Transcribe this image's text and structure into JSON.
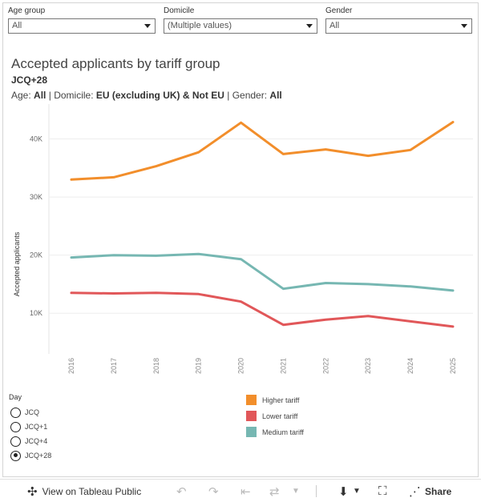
{
  "filters": [
    {
      "label": "Age group",
      "value": "All"
    },
    {
      "label": "Domicile",
      "value": "(Multiple values)"
    },
    {
      "label": "Gender",
      "value": "All"
    }
  ],
  "header": {
    "title": "Accepted applicants by tariff group",
    "subtitle": "JCQ+28",
    "age_label": "Age:",
    "age_value": "All",
    "domicile_label": "Domicile:",
    "domicile_value": "EU (excluding UK) & Not EU",
    "gender_label": "Gender:",
    "gender_value": "All",
    "separator": "|"
  },
  "day_filter": {
    "title": "Day",
    "options": [
      "JCQ",
      "JCQ+1",
      "JCQ+4",
      "JCQ+28"
    ],
    "selected": "JCQ+28"
  },
  "colors": {
    "higher": "#f28e2b",
    "lower": "#e15759",
    "medium": "#76b7b2",
    "grid": "#eeeeee"
  },
  "chart_data": {
    "type": "line",
    "title": "Accepted applicants by tariff group",
    "xlabel": "",
    "ylabel": "Accepted applicants",
    "x": [
      "2016",
      "2017",
      "2018",
      "2019",
      "2020",
      "2021",
      "2022",
      "2023",
      "2024",
      "2025"
    ],
    "ylim": [
      3000,
      46000
    ],
    "yticks": [
      10000,
      20000,
      30000,
      40000
    ],
    "ytick_labels": [
      "10K",
      "20K",
      "30K",
      "40K"
    ],
    "grid": true,
    "legend_position": "bottom",
    "series": [
      {
        "name": "Higher tariff",
        "color": "#f28e2b",
        "values": [
          33000,
          33400,
          35300,
          37700,
          42800,
          37400,
          38200,
          37100,
          38100,
          42900
        ]
      },
      {
        "name": "Lower tariff",
        "color": "#e15759",
        "values": [
          13500,
          13400,
          13500,
          13300,
          12000,
          8000,
          8900,
          9500,
          8600,
          7700
        ]
      },
      {
        "name": "Medium tariff",
        "color": "#76b7b2",
        "values": [
          19600,
          20000,
          19900,
          20200,
          19300,
          14200,
          15200,
          15000,
          14600,
          13900
        ]
      }
    ]
  },
  "toolbar": {
    "view_label": "View on Tableau Public",
    "share_label": "Share"
  }
}
